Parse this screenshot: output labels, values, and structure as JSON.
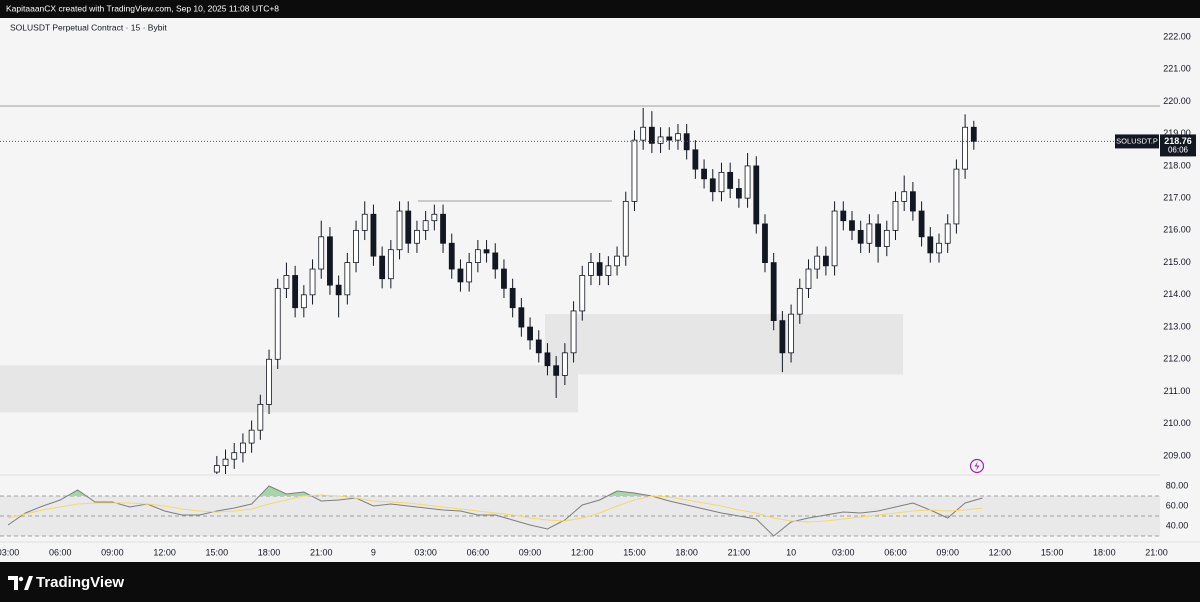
{
  "header": {
    "text": "KapitaaanCX created with TradingView.com, Sep 10, 2025 11:08 UTC+8"
  },
  "footer": {
    "brand": "TradingView"
  },
  "chart_data": [
    {
      "type": "candlestick",
      "title": "SOLUSDT Perpetual Contract · 15 · Bybit",
      "x": [
        15,
        15.5,
        16,
        16.5,
        17,
        17.5,
        18,
        18.5,
        19,
        19.5,
        20,
        20.5,
        21,
        21.5,
        22,
        22.5,
        23,
        23.5,
        24,
        24.5,
        25,
        25.5,
        26,
        26.5,
        27,
        27.5,
        28,
        28.5,
        29,
        29.5,
        30,
        30.5,
        31,
        31.5,
        32,
        32.5,
        33,
        33.5,
        34,
        34.5,
        35,
        35.5,
        36,
        36.5,
        37,
        37.5,
        38,
        38.5,
        39,
        39.5,
        40,
        40.5,
        41,
        41.5,
        42,
        42.5,
        43,
        43.5,
        44,
        44.5,
        45,
        45.5,
        46,
        46.5,
        47,
        47.5,
        48,
        48.5,
        49,
        49.5,
        50,
        50.5,
        51,
        51.5,
        52,
        52.5,
        53,
        53.5,
        54,
        54.5,
        55,
        55.5,
        56,
        56.5,
        57,
        57.5,
        58,
        58.5
      ],
      "open": [
        208.5,
        208.7,
        208.9,
        209.1,
        209.4,
        209.8,
        210.6,
        212.0,
        214.2,
        214.6,
        213.6,
        214.0,
        214.8,
        215.8,
        214.3,
        214.0,
        215.0,
        216.0,
        216.5,
        215.2,
        214.5,
        215.4,
        216.6,
        215.6,
        216.0,
        216.3,
        216.5,
        215.6,
        214.8,
        214.4,
        215.0,
        215.4,
        215.3,
        214.8,
        214.2,
        213.6,
        213.0,
        212.6,
        212.2,
        211.8,
        211.5,
        212.2,
        213.5,
        214.6,
        215.0,
        214.6,
        214.9,
        215.2,
        216.9,
        218.8,
        219.2,
        218.7,
        218.9,
        218.8,
        219.0,
        218.5,
        217.9,
        217.6,
        217.2,
        217.8,
        217.3,
        217.0,
        218.0,
        216.2,
        215.0,
        213.2,
        212.2,
        213.4,
        214.2,
        214.8,
        215.2,
        214.9,
        216.6,
        216.3,
        216.0,
        215.6,
        216.2,
        215.5,
        216.0,
        216.9,
        217.2,
        216.6,
        215.8,
        215.3,
        215.6,
        216.2,
        217.9,
        219.2
      ],
      "high": [
        209.0,
        209.2,
        209.4,
        209.7,
        210.1,
        210.9,
        212.3,
        214.5,
        215.0,
        214.9,
        214.3,
        215.1,
        216.3,
        216.1,
        214.6,
        215.3,
        216.3,
        216.9,
        216.8,
        215.5,
        215.7,
        216.9,
        216.9,
        216.3,
        216.6,
        216.8,
        216.8,
        215.9,
        215.1,
        215.3,
        215.7,
        215.7,
        215.6,
        215.1,
        214.5,
        213.9,
        213.3,
        212.9,
        212.5,
        212.1,
        212.5,
        213.8,
        214.9,
        215.3,
        215.3,
        215.2,
        215.5,
        217.2,
        219.1,
        219.8,
        219.7,
        219.2,
        219.2,
        219.3,
        219.3,
        218.8,
        218.2,
        217.9,
        218.1,
        218.1,
        217.6,
        218.4,
        218.3,
        216.5,
        215.3,
        213.5,
        213.7,
        214.5,
        215.1,
        215.5,
        215.5,
        216.9,
        216.9,
        216.6,
        216.3,
        216.5,
        216.5,
        216.3,
        217.2,
        217.7,
        217.5,
        216.9,
        216.1,
        215.9,
        216.5,
        218.2,
        219.6,
        219.4
      ],
      "low": [
        208.2,
        208.4,
        208.6,
        208.8,
        209.1,
        209.5,
        210.3,
        211.7,
        213.9,
        213.3,
        213.3,
        213.7,
        214.5,
        214.0,
        213.3,
        213.7,
        214.7,
        215.7,
        214.9,
        214.2,
        214.2,
        215.1,
        215.3,
        215.3,
        215.7,
        216.0,
        215.3,
        214.5,
        214.1,
        214.1,
        214.7,
        215.0,
        214.5,
        213.9,
        213.3,
        212.7,
        212.3,
        211.9,
        211.5,
        210.8,
        211.2,
        211.9,
        213.2,
        214.3,
        214.3,
        214.3,
        214.6,
        214.9,
        216.6,
        218.5,
        218.4,
        218.4,
        218.5,
        218.5,
        218.2,
        217.6,
        217.3,
        216.9,
        216.9,
        217.0,
        216.7,
        216.7,
        215.9,
        214.7,
        212.9,
        211.6,
        211.9,
        213.1,
        213.9,
        214.5,
        214.6,
        214.6,
        216.0,
        215.7,
        215.3,
        215.3,
        215.0,
        215.2,
        215.7,
        216.6,
        216.3,
        215.5,
        215.0,
        215.0,
        215.3,
        215.9,
        217.6,
        218.5
      ],
      "close": [
        208.7,
        208.9,
        209.1,
        209.4,
        209.8,
        210.6,
        212.0,
        214.2,
        214.6,
        213.6,
        214.0,
        214.8,
        215.8,
        214.3,
        214.0,
        215.0,
        216.0,
        216.5,
        215.2,
        214.5,
        215.4,
        216.6,
        215.6,
        216.0,
        216.3,
        216.5,
        215.6,
        214.8,
        214.4,
        215.0,
        215.4,
        215.3,
        214.8,
        214.2,
        213.6,
        213.0,
        212.6,
        212.2,
        211.8,
        211.5,
        212.2,
        213.5,
        214.6,
        215.0,
        214.6,
        214.9,
        215.2,
        216.9,
        218.8,
        219.2,
        218.7,
        218.9,
        218.8,
        219.0,
        218.5,
        217.9,
        217.6,
        217.2,
        217.8,
        217.3,
        217.0,
        218.0,
        216.2,
        215.0,
        213.2,
        212.2,
        213.4,
        214.2,
        214.8,
        215.2,
        214.9,
        216.6,
        216.3,
        216.0,
        215.6,
        216.2,
        215.5,
        216.0,
        216.9,
        217.2,
        216.6,
        215.8,
        215.3,
        215.6,
        216.2,
        217.9,
        219.2,
        218.76
      ],
      "up_color": "#ffffff",
      "down_color": "#131722",
      "xlim": [
        2.54,
        69.2
      ],
      "xticks": [
        {
          "value": 3,
          "label": "03:00"
        },
        {
          "value": 6,
          "label": "06:00"
        },
        {
          "value": 9,
          "label": "09:00"
        },
        {
          "value": 12,
          "label": "12:00"
        },
        {
          "value": 15,
          "label": "15:00"
        },
        {
          "value": 18,
          "label": "18:00"
        },
        {
          "value": 21,
          "label": "21:00"
        },
        {
          "value": 24,
          "label": "9"
        },
        {
          "value": 27,
          "label": "03:00"
        },
        {
          "value": 30,
          "label": "06:00"
        },
        {
          "value": 33,
          "label": "09:00"
        },
        {
          "value": 36,
          "label": "12:00"
        },
        {
          "value": 39,
          "label": "15:00"
        },
        {
          "value": 42,
          "label": "18:00"
        },
        {
          "value": 45,
          "label": "21:00"
        },
        {
          "value": 48,
          "label": "10"
        },
        {
          "value": 51,
          "label": "03:00"
        },
        {
          "value": 54,
          "label": "06:00"
        },
        {
          "value": 57,
          "label": "09:00"
        },
        {
          "value": 60,
          "label": "12:00"
        },
        {
          "value": 63,
          "label": "15:00"
        },
        {
          "value": 66,
          "label": "18:00"
        },
        {
          "value": 69,
          "label": "21:00"
        }
      ],
      "ylim": [
        208.44,
        222.59
      ],
      "yticks": [
        {
          "value": 209,
          "label": "209.00"
        },
        {
          "value": 210,
          "label": "210.00"
        },
        {
          "value": 211,
          "label": "211.00"
        },
        {
          "value": 212,
          "label": "212.00"
        },
        {
          "value": 213,
          "label": "213.00"
        },
        {
          "value": 214,
          "label": "214.00"
        },
        {
          "value": 215,
          "label": "215.00"
        },
        {
          "value": 216,
          "label": "216.00"
        },
        {
          "value": 217,
          "label": "217.00"
        },
        {
          "value": 218,
          "label": "218.00"
        },
        {
          "value": 219,
          "label": "219.00"
        },
        {
          "value": 220,
          "label": "220.00"
        },
        {
          "value": 221,
          "label": "221.00"
        },
        {
          "value": 222,
          "label": "222.00"
        }
      ],
      "zones": [
        {
          "x": [
            2.54,
            35.76
          ],
          "y": [
            210.35,
            211.81
          ]
        },
        {
          "x": [
            33.86,
            54.44
          ],
          "y": [
            211.53,
            213.4
          ]
        }
      ],
      "segments": [
        {
          "x": [
            26.56,
            37.71
          ],
          "y": 216.91
        }
      ],
      "resistance": 219.86,
      "last_price": {
        "symbol": "SOLUSDT.P",
        "price": 218.76,
        "countdown": "06:06"
      }
    },
    {
      "type": "line",
      "x": [
        3,
        4,
        5,
        6,
        7,
        8,
        9,
        10,
        11,
        12,
        13,
        14,
        15,
        16,
        17,
        18,
        19,
        20,
        21,
        22,
        23,
        24,
        25,
        26,
        27,
        28,
        29,
        30,
        31,
        32,
        33,
        34,
        35,
        36,
        37,
        38,
        39,
        40,
        41,
        42,
        43,
        44,
        45,
        46,
        47,
        48,
        49,
        50,
        51,
        52,
        53,
        54,
        55,
        56,
        57,
        58,
        59
      ],
      "series": [
        {
          "color": "#7e7e7e",
          "values": [
            41,
            53,
            60,
            66,
            76,
            64,
            64,
            59,
            62,
            55,
            51,
            51,
            55,
            58,
            62,
            80,
            72,
            74,
            65,
            66,
            68,
            60,
            62,
            60,
            58,
            56,
            55,
            51,
            51,
            46,
            41,
            37,
            46,
            61,
            66,
            75,
            73,
            70,
            65,
            61,
            57,
            53,
            50,
            47,
            30,
            44,
            48,
            51,
            54,
            53,
            55,
            59,
            63,
            56,
            48,
            63,
            68
          ]
        },
        {
          "color": "#f3d96b",
          "values": [
            48,
            52,
            56,
            59,
            62,
            63,
            63,
            63,
            62,
            60,
            57,
            55,
            54,
            55,
            57,
            62,
            66,
            70,
            71,
            70,
            68,
            65,
            64,
            63,
            61,
            59,
            57,
            55,
            53,
            51,
            48,
            46,
            45,
            48,
            53,
            60,
            66,
            70,
            69,
            66,
            63,
            60,
            56,
            53,
            48,
            45,
            44,
            45,
            47,
            49,
            51,
            53,
            55,
            56,
            55,
            56,
            58
          ]
        }
      ],
      "xlim": [
        2.54,
        69.2
      ],
      "ylim": [
        26,
        88
      ],
      "yticks": [
        {
          "value": 80,
          "label": "80.00"
        },
        {
          "value": 60,
          "label": "60.00"
        },
        {
          "value": 40,
          "label": "40.00"
        }
      ],
      "levels": [
        70,
        50,
        30
      ],
      "overbought_color": "#a5d6a7"
    }
  ]
}
